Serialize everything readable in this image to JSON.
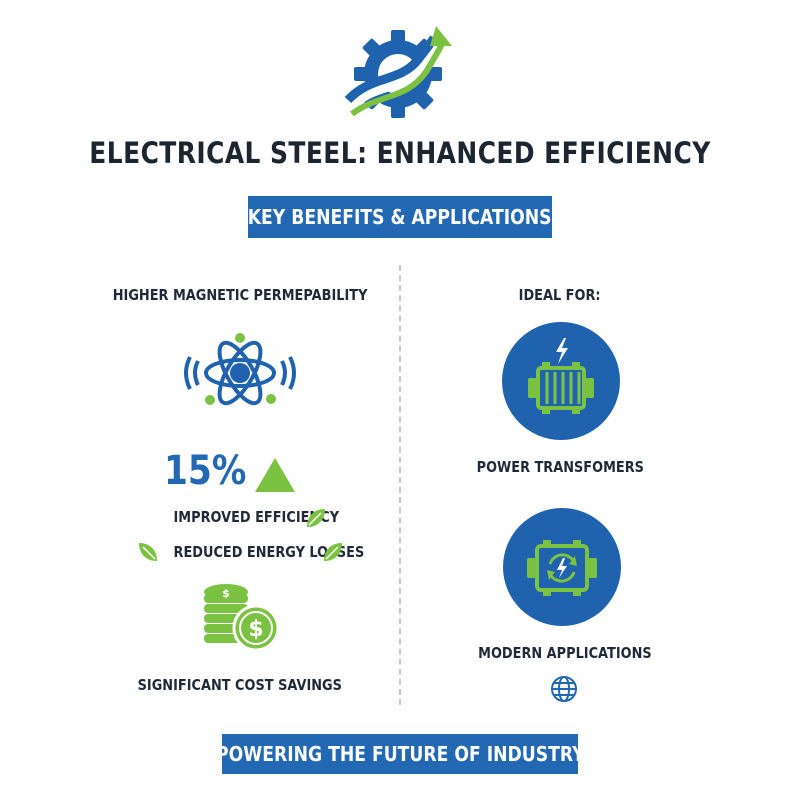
{
  "header": {
    "title": "ELECTRICAL STEEL: ENHANCED EFFICIENCY",
    "logo_icon": "gear-arrow-logo-icon"
  },
  "banner_top": "KEY BENEFITS & APPLICATIONS",
  "left": {
    "heading": "HIGHER MAGNETIC PERMEPABILITY",
    "stat_value": "15%",
    "benefits": [
      "IMPROVED EFFICIENCY",
      "REDUCED ENERGY LOSSES"
    ],
    "savings_label": "SIGNIFICANT COST SAVINGS"
  },
  "right": {
    "heading": "IDEAL FOR:",
    "applications": [
      "POWER TRANSFOMERS",
      "MODERN APPLICATIONS"
    ]
  },
  "banner_bottom": "POWERING THE FUTURE OF INDUSTRY",
  "colors": {
    "blue": "#2368b3",
    "green": "#7cc242",
    "dark": "#1d2630"
  }
}
